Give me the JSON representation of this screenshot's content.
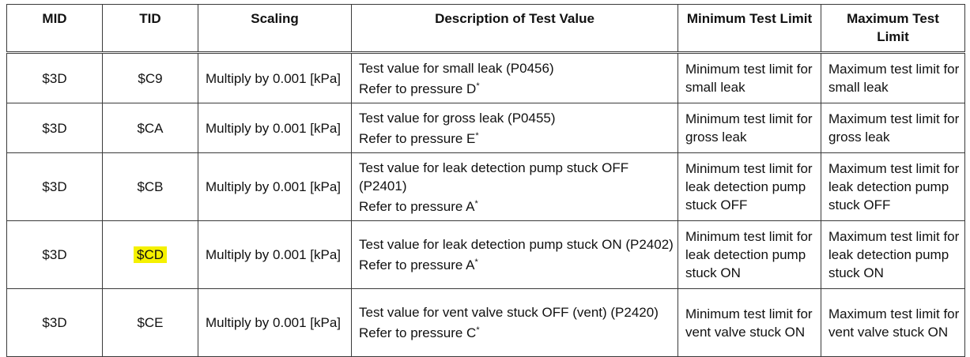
{
  "headers": {
    "mid": "MID",
    "tid": "TID",
    "scaling": "Scaling",
    "description": "Description of Test Value",
    "min_limit": "Minimum Test Limit",
    "max_limit": "Maximum Test Limit"
  },
  "rows": [
    {
      "mid": "$3D",
      "tid": "$C9",
      "scaling": "Multiply by 0.001 [kPa]",
      "description": "Test value for small leak (P0456)",
      "reference": "Refer to pressure D",
      "reference_mark": "*",
      "min_limit": "Minimum test limit for small leak",
      "max_limit": "Maximum test limit for small leak"
    },
    {
      "mid": "$3D",
      "tid": "$CA",
      "scaling": "Multiply by 0.001 [kPa]",
      "description": "Test value for gross leak (P0455)",
      "reference": "Refer to pressure E",
      "reference_mark": "*",
      "min_limit": "Minimum test limit for gross leak",
      "max_limit": "Maximum test limit for gross leak"
    },
    {
      "mid": "$3D",
      "tid": "$CB",
      "scaling": "Multiply by 0.001 [kPa]",
      "description": "Test value for leak detection pump stuck OFF (P2401)",
      "reference": "Refer to pressure A",
      "reference_mark": "*",
      "min_limit": "Minimum test limit for leak detection pump stuck OFF",
      "max_limit": "Maximum test limit for leak detection pump stuck OFF"
    },
    {
      "mid": "$3D",
      "tid": "$CD",
      "tid_highlight_color": "#f5f100",
      "scaling": "Multiply by 0.001 [kPa]",
      "description": "Test value for leak detection pump stuck ON (P2402)",
      "reference": "Refer to pressure A",
      "reference_mark": "*",
      "min_limit": "Minimum test limit for leak detection pump stuck ON",
      "max_limit": "Maximum test limit for leak detection pump stuck ON"
    },
    {
      "mid": "$3D",
      "tid": "$CE",
      "scaling": "Multiply by 0.001 [kPa]",
      "description": "Test value for vent valve stuck OFF (vent) (P2420)",
      "reference": "Refer to pressure C",
      "reference_mark": "*",
      "min_limit": "Minimum test limit for vent valve stuck ON",
      "max_limit": "Maximum test limit for vent valve stuck ON"
    }
  ]
}
